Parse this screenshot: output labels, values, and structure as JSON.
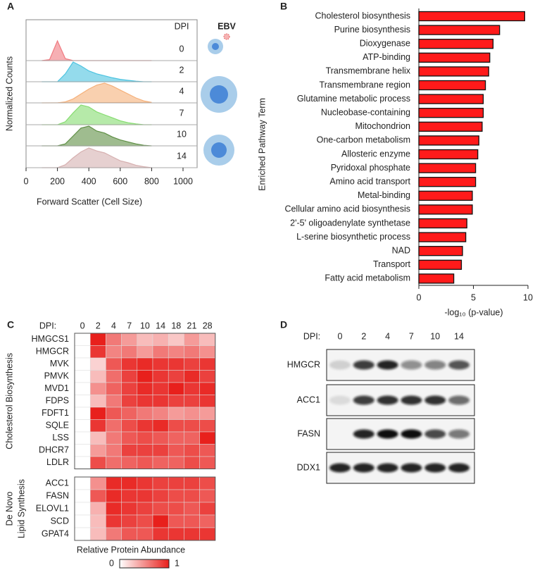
{
  "panel_labels": [
    "A",
    "B",
    "C",
    "D"
  ],
  "chart_data": [
    {
      "type": "ridgeline",
      "x_label": "Forward Scatter (Cell Size)",
      "y_label": "Normalized Counts",
      "legend_title": "DPI",
      "annotation": "EBV",
      "xlim": [
        0,
        1000
      ],
      "xticks": [
        0,
        200,
        400,
        600,
        800,
        1000
      ],
      "x": [
        100,
        150,
        200,
        250,
        300,
        350,
        400,
        450,
        500,
        550,
        600,
        650,
        700,
        750,
        800
      ],
      "series": [
        {
          "name": "0",
          "color": "#f07a80",
          "values": [
            0,
            0.05,
            1.0,
            0.1,
            0,
            0,
            0,
            0,
            0,
            0,
            0,
            0,
            0,
            0,
            0
          ]
        },
        {
          "name": "2",
          "color": "#4cc3e0",
          "values": [
            0,
            0,
            0,
            0.4,
            1.0,
            0.8,
            0.55,
            0.4,
            0.3,
            0.2,
            0.12,
            0.07,
            0.03,
            0,
            0
          ]
        },
        {
          "name": "4",
          "color": "#f5b07a",
          "values": [
            0,
            0,
            0,
            0.05,
            0.2,
            0.45,
            0.7,
            0.9,
            1.0,
            0.85,
            0.65,
            0.45,
            0.25,
            0.1,
            0.02
          ]
        },
        {
          "name": "7",
          "color": "#86dc70",
          "values": [
            0,
            0,
            0,
            0.15,
            0.6,
            1.0,
            0.9,
            0.65,
            0.5,
            0.35,
            0.2,
            0.1,
            0.04,
            0,
            0
          ]
        },
        {
          "name": "10",
          "color": "#5f8f45",
          "values": [
            0,
            0,
            0,
            0.1,
            0.5,
            0.9,
            1.0,
            0.75,
            0.65,
            0.45,
            0.3,
            0.2,
            0.1,
            0.03,
            0
          ]
        },
        {
          "name": "14",
          "color": "#d6b0b0",
          "values": [
            0,
            0,
            0,
            0.15,
            0.5,
            0.8,
            1.0,
            0.85,
            0.75,
            0.55,
            0.35,
            0.25,
            0.12,
            0.05,
            0
          ]
        }
      ]
    },
    {
      "type": "bar",
      "orientation": "horizontal",
      "y_label": "Enriched Pathway Term",
      "x_label": "-log₁₀ (p-value)",
      "categories": [
        "Cholesterol biosynthesis",
        "Purine biosynthesis",
        "Dioxygenase",
        "ATP-binding",
        "Transmembrane helix",
        "Transmembrane region",
        "Glutamine metabolic process",
        "Nucleobase-containing",
        "Mitochondrion",
        "One-carbon metabolism",
        "Allosteric enzyme",
        "Pyridoxal phosphate",
        "Amino acid transport",
        "Metal-binding",
        "Cellular amino acid biosynthesis",
        "2'-5' oligoadenylate synthetase",
        "L-serine biosynthetic process",
        "NAD",
        "Transport",
        "Fatty acid metabolism"
      ],
      "values": [
        9.7,
        7.4,
        6.8,
        6.5,
        6.4,
        6.1,
        5.9,
        5.9,
        5.8,
        5.5,
        5.4,
        5.2,
        5.2,
        4.9,
        4.9,
        4.4,
        4.3,
        4.0,
        3.9,
        3.2
      ],
      "color": "#ff1a1a",
      "highlight_color": "#e0201b",
      "highlighted": [
        0,
        19
      ],
      "xlim": [
        0,
        10
      ],
      "xticks": [
        0,
        5,
        10
      ]
    },
    {
      "type": "heatmap",
      "column_title": "DPI:",
      "columns": [
        "0",
        "2",
        "4",
        "7",
        "10",
        "14",
        "18",
        "21",
        "28"
      ],
      "groups": [
        {
          "name_lines": [
            "Cholesterol Biosynthesis"
          ],
          "rows": [
            "HMGCS1",
            "HMGCR",
            "MVK",
            "PMVK",
            "MVD1",
            "FDPS",
            "FDFT1",
            "SQLE",
            "LSS",
            "DHCR7",
            "LDLR"
          ],
          "values": [
            [
              0,
              1.0,
              0.6,
              0.45,
              0.3,
              0.35,
              0.25,
              0.45,
              0.3
            ],
            [
              0,
              0.9,
              0.55,
              0.6,
              0.45,
              0.6,
              0.55,
              0.6,
              0.5
            ],
            [
              0,
              0.2,
              0.75,
              0.9,
              0.95,
              0.9,
              0.9,
              0.85,
              0.9
            ],
            [
              0,
              0.3,
              0.65,
              0.85,
              1.0,
              0.9,
              0.85,
              0.95,
              0.85
            ],
            [
              0,
              0.5,
              0.7,
              0.85,
              0.95,
              0.9,
              1.0,
              0.9,
              0.95
            ],
            [
              0,
              0.3,
              0.6,
              0.85,
              0.9,
              0.9,
              0.85,
              0.85,
              0.9
            ],
            [
              0,
              1.0,
              0.75,
              0.7,
              0.6,
              0.55,
              0.45,
              0.5,
              0.45
            ],
            [
              0,
              0.9,
              0.65,
              0.8,
              0.9,
              0.95,
              0.8,
              0.8,
              0.8
            ],
            [
              0,
              0.3,
              0.6,
              0.75,
              0.8,
              0.75,
              0.7,
              0.7,
              1.0
            ],
            [
              0,
              0.45,
              0.6,
              0.85,
              0.85,
              0.85,
              0.75,
              0.8,
              0.75
            ],
            [
              0,
              0.8,
              0.65,
              0.7,
              0.75,
              0.7,
              0.7,
              0.8,
              0.75
            ]
          ]
        },
        {
          "name_lines": [
            "De Novo",
            "Lipid Synthesis"
          ],
          "rows": [
            "ACC1",
            "FASN",
            "ELOVL1",
            "SCD",
            "GPAT4"
          ],
          "values": [
            [
              0,
              0.5,
              0.95,
              0.95,
              0.9,
              0.85,
              0.85,
              0.85,
              0.8
            ],
            [
              0,
              0.75,
              0.95,
              0.9,
              0.9,
              0.85,
              0.8,
              0.8,
              0.75
            ],
            [
              0,
              0.35,
              0.95,
              0.9,
              0.85,
              0.8,
              0.8,
              0.75,
              0.85
            ],
            [
              0,
              0.3,
              0.9,
              0.85,
              0.8,
              1.0,
              0.75,
              0.75,
              0.7
            ],
            [
              0,
              0.3,
              0.6,
              0.75,
              0.75,
              0.9,
              0.9,
              0.9,
              0.9
            ]
          ]
        }
      ],
      "colorbar_label": "Relative Protein Abundance",
      "clim": [
        0,
        1
      ],
      "colorbar_ticks": [
        0,
        1
      ],
      "color_low": "#ffffff",
      "color_high": "#e8201c"
    }
  ],
  "blot": {
    "column_title": "DPI:",
    "columns": [
      "0",
      "2",
      "4",
      "7",
      "10",
      "14"
    ],
    "rows": [
      {
        "name": "HMGCR",
        "band_intensity": [
          0.15,
          0.8,
          0.9,
          0.45,
          0.5,
          0.7
        ]
      },
      {
        "name": "ACC1",
        "band_intensity": [
          0.1,
          0.8,
          0.85,
          0.85,
          0.85,
          0.6
        ]
      },
      {
        "name": "FASN",
        "band_intensity": [
          0,
          0.9,
          1.0,
          1.0,
          0.75,
          0.55
        ]
      },
      {
        "name": "DDX1",
        "band_intensity": [
          0.9,
          0.9,
          0.9,
          0.9,
          0.9,
          0.9
        ]
      }
    ]
  }
}
